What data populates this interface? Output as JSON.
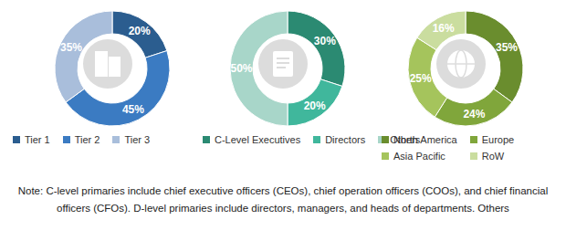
{
  "chart_data": [
    {
      "type": "pie",
      "categories": [
        "Tier 1",
        "Tier 2",
        "Tier 3"
      ],
      "values": [
        20,
        45,
        35
      ],
      "value_labels": [
        "20%",
        "45%",
        "35%"
      ],
      "colors": [
        "#2b5d8f",
        "#3b7bc2",
        "#a9bedb"
      ],
      "data_labels": true,
      "legend": "bottom"
    },
    {
      "type": "pie",
      "categories": [
        "C-Level Executives",
        "Directors",
        "Others"
      ],
      "values": [
        30,
        20,
        50
      ],
      "value_labels": [
        "30%",
        "20%",
        "50%"
      ],
      "colors": [
        "#2b8a72",
        "#40b79c",
        "#a8d6c9"
      ],
      "data_labels": true,
      "legend": "bottom"
    },
    {
      "type": "pie",
      "categories": [
        "North America",
        "Europe",
        "Asia Pacific",
        "RoW"
      ],
      "values": [
        35,
        24,
        25,
        16
      ],
      "value_labels": [
        "35%",
        "24%",
        "25%",
        "16%"
      ],
      "colors": [
        "#6a8d2e",
        "#80a63b",
        "#a5c45c",
        "#cadd9f"
      ],
      "data_labels": true,
      "legend": "bottom"
    }
  ],
  "note": "Note: C-level primaries include chief executive officers (CEOs), chief operation officers (COOs), and chief financial officers (CFOs). D-level primaries include directors, managers, and heads of departments. Others"
}
